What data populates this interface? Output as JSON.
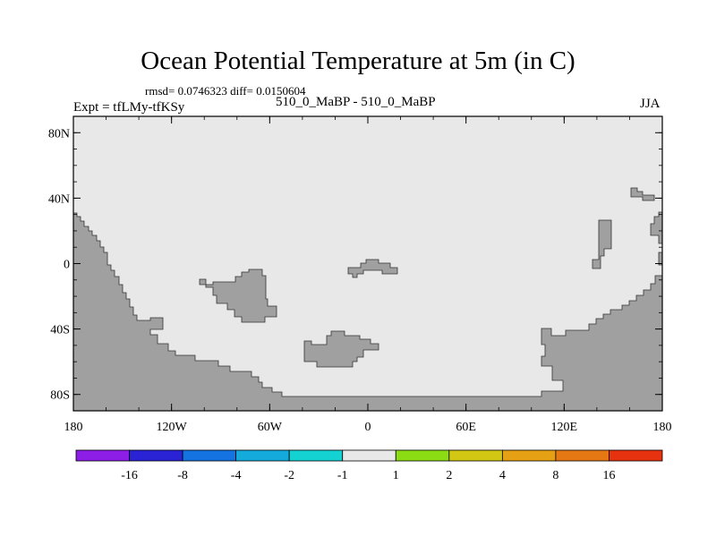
{
  "title": "Ocean Potential Temperature at 5m (in C)",
  "stats_line": "rmsd= 0.0746323 diff= 0.0150604",
  "experiment_label": "Expt = tfLMy-tfKSy",
  "case_label": "510_0_MaBP - 510_0_MaBP",
  "season_label": "JJA",
  "map": {
    "lon_range": [
      -180,
      180
    ],
    "lat_range": [
      -90,
      90
    ],
    "y_ticks": [
      {
        "lat": 80,
        "label": "80N"
      },
      {
        "lat": 40,
        "label": "40N"
      },
      {
        "lat": 0,
        "label": "0"
      },
      {
        "lat": -40,
        "label": "40S"
      },
      {
        "lat": -80,
        "label": "80S"
      }
    ],
    "x_ticks": [
      {
        "lon": -180,
        "label": "180"
      },
      {
        "lon": -120,
        "label": "120W"
      },
      {
        "lon": -60,
        "label": "60W"
      },
      {
        "lon": 0,
        "label": "0"
      },
      {
        "lon": 60,
        "label": "60E"
      },
      {
        "lon": 120,
        "label": "120E"
      },
      {
        "lon": 180,
        "label": "180"
      }
    ],
    "ocean_fill_color": "#e8e8e8",
    "land_fill_color": "#a0a0a0"
  },
  "colorbar": {
    "colors": [
      "#8c1ee6",
      "#2a23d6",
      "#1473e0",
      "#14aadc",
      "#14d2d2",
      "#e8e8e8",
      "#8cdc14",
      "#d2c814",
      "#e6a014",
      "#e67814",
      "#e6320f"
    ],
    "labels": [
      "-16",
      "-8",
      "-4",
      "-2",
      "-1",
      "1",
      "2",
      "4",
      "8",
      "16"
    ]
  }
}
